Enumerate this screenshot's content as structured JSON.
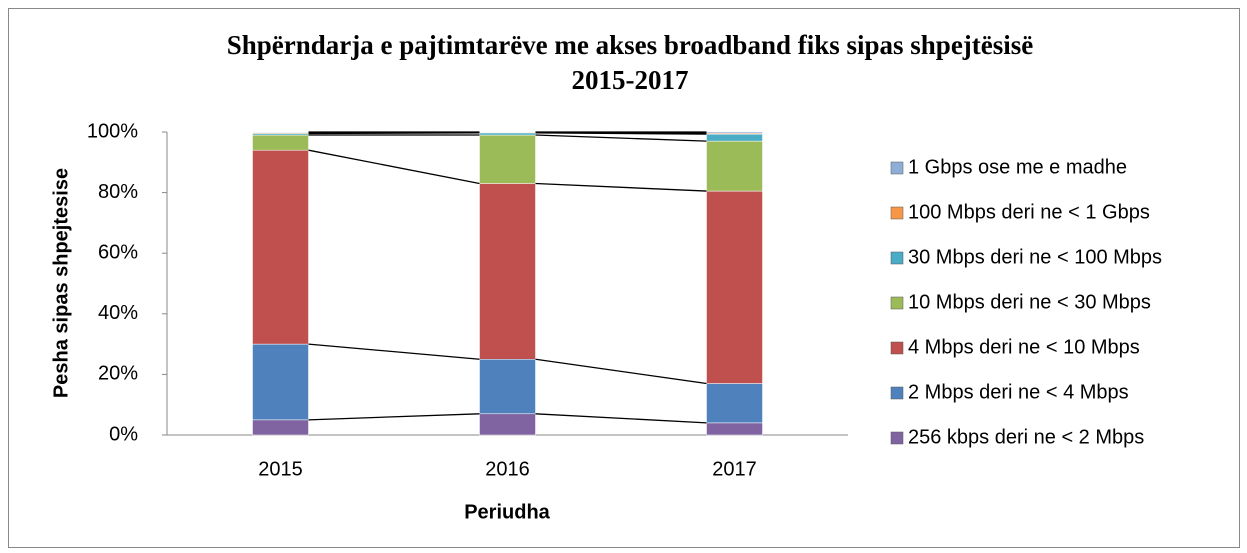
{
  "chart_data": {
    "type": "stacked_bar",
    "title": [
      "Shpërndarja e pajtimtarëve me akses broadband fiks sipas shpejtësisë",
      "2015-2017"
    ],
    "x_label": "Periudha",
    "y_label": "Pesha sipas shpejtesise",
    "categories": [
      "2015",
      "2016",
      "2017"
    ],
    "series": [
      {
        "name": "256 kbps deri ne < 2 Mbps",
        "color": "#8064a2",
        "values": [
          5,
          7,
          4
        ]
      },
      {
        "name": "2 Mbps deri ne < 4 Mbps",
        "color": "#4f81bd",
        "values": [
          25,
          18,
          13
        ]
      },
      {
        "name": "4 Mbps deri ne < 10 Mbps",
        "color": "#c0504d",
        "values": [
          64,
          58,
          63.5
        ]
      },
      {
        "name": "10 Mbps deri ne < 30 Mbps",
        "color": "#9bbb59",
        "values": [
          5,
          16,
          16.5
        ]
      },
      {
        "name": "30 Mbps deri ne < 100 Mbps",
        "color": "#4bacc6",
        "values": [
          0.5,
          0.7,
          2.3
        ]
      },
      {
        "name": "100 Mbps deri ne < 1 Gbps",
        "color": "#f79646",
        "values": [
          0.3,
          0.2,
          0.3
        ]
      },
      {
        "name": "1 Gbps ose me e madhe",
        "color": "#8eaed8",
        "values": [
          0.2,
          0.1,
          0.4
        ]
      }
    ],
    "ylim": [
      0,
      100
    ],
    "yticks": [
      {
        "value": 0,
        "label": "0%"
      },
      {
        "value": 20,
        "label": "20%"
      },
      {
        "value": 40,
        "label": "40%"
      },
      {
        "value": 60,
        "label": "60%"
      },
      {
        "value": 80,
        "label": "80%"
      },
      {
        "value": 100,
        "label": "100%"
      }
    ],
    "legend": "right"
  }
}
